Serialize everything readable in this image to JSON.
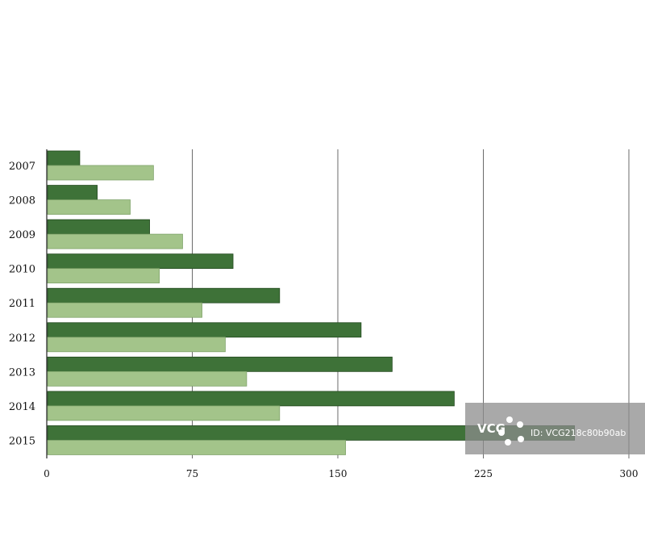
{
  "chart_data": {
    "type": "bar",
    "orientation": "horizontal",
    "categories": [
      "2007",
      "2008",
      "2009",
      "2010",
      "2011",
      "2012",
      "2013",
      "2014",
      "2015"
    ],
    "series": [
      {
        "values": [
          17,
          26,
          53,
          96,
          120,
          162,
          178,
          210,
          272
        ],
        "color": "#3e7238"
      },
      {
        "values": [
          55,
          43,
          70,
          58,
          80,
          92,
          103,
          120,
          154
        ],
        "color": "#a3c48a"
      }
    ],
    "xlim": [
      0,
      300
    ],
    "xticks": [
      "0",
      "75",
      "150",
      "225",
      "300"
    ],
    "grid": true,
    "title": "",
    "xlabel": "",
    "ylabel": ""
  },
  "watermark": {
    "logo": "VCG",
    "id_text": "ID: VCG218c80b90ab"
  }
}
